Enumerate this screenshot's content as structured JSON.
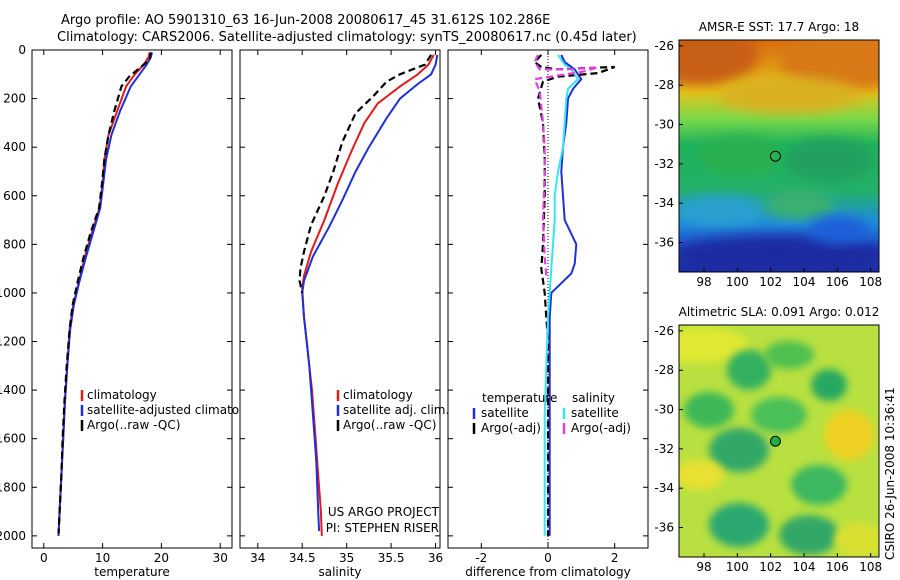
{
  "header": {
    "line1": "Argo profile: AO 5901310_63 16-Jun-2008 20080617_45 31.612S 102.286E",
    "line2": "Climatology: CARS2006. Satellite-adjusted climatology: synTS_20080617.nc (0.45d later)"
  },
  "side_caption": "CSIRO 26-Jun-2008 10:36:41",
  "colors": {
    "red": "#e31a1c",
    "blue": "#1f2fd6",
    "black": "#000000",
    "cyan": "#33e6f0",
    "magenta": "#e040e0"
  },
  "chart_data": [
    {
      "type": "line",
      "xlabel": "temperature",
      "xlim": [
        -2,
        32
      ],
      "ylim": [
        0,
        2050
      ],
      "y_reversed": true,
      "xticks": [
        0,
        10,
        20,
        30
      ],
      "yticks": [
        0,
        200,
        400,
        600,
        800,
        1000,
        1200,
        1400,
        1600,
        1800,
        2000
      ],
      "legend": [
        "climatology",
        "satellite-adjusted climatology",
        "Argo(..raw -QC)"
      ],
      "series": [
        {
          "name": "climatology",
          "color": "red",
          "dash": false,
          "points": [
            [
              18.0,
              10
            ],
            [
              17.8,
              30
            ],
            [
              17.0,
              60
            ],
            [
              15.5,
              100
            ],
            [
              14.0,
              150
            ],
            [
              12.5,
              250
            ],
            [
              11.0,
              350
            ],
            [
              10.3,
              450
            ],
            [
              10.0,
              550
            ],
            [
              9.5,
              650
            ],
            [
              8.2,
              750
            ],
            [
              7.0,
              850
            ],
            [
              6.0,
              950
            ],
            [
              5.0,
              1050
            ],
            [
              4.4,
              1150
            ],
            [
              4.0,
              1300
            ],
            [
              3.6,
              1450
            ],
            [
              3.3,
              1600
            ],
            [
              3.0,
              1750
            ],
            [
              2.7,
              1900
            ],
            [
              2.5,
              2000
            ]
          ]
        },
        {
          "name": "satellite-adjusted climatology",
          "color": "blue",
          "dash": false,
          "points": [
            [
              18.4,
              10
            ],
            [
              18.2,
              30
            ],
            [
              17.5,
              60
            ],
            [
              16.3,
              100
            ],
            [
              14.8,
              150
            ],
            [
              13.0,
              250
            ],
            [
              11.5,
              350
            ],
            [
              10.6,
              450
            ],
            [
              10.1,
              550
            ],
            [
              9.6,
              650
            ],
            [
              8.4,
              750
            ],
            [
              7.2,
              850
            ],
            [
              6.1,
              950
            ],
            [
              5.1,
              1050
            ],
            [
              4.5,
              1150
            ],
            [
              4.0,
              1300
            ],
            [
              3.6,
              1450
            ],
            [
              3.3,
              1600
            ],
            [
              3.0,
              1750
            ],
            [
              2.7,
              1900
            ],
            [
              2.5,
              2000
            ]
          ]
        },
        {
          "name": "Argo(..raw -QC)",
          "color": "black",
          "dash": true,
          "points": [
            [
              18.2,
              10
            ],
            [
              18.0,
              40
            ],
            [
              16.5,
              70
            ],
            [
              14.5,
              110
            ],
            [
              13.2,
              150
            ],
            [
              12.0,
              250
            ],
            [
              11.0,
              350
            ],
            [
              10.3,
              450
            ],
            [
              9.9,
              550
            ],
            [
              9.4,
              650
            ],
            [
              8.0,
              750
            ],
            [
              6.8,
              850
            ],
            [
              5.8,
              950
            ],
            [
              4.9,
              1050
            ],
            [
              4.4,
              1150
            ],
            [
              3.9,
              1300
            ],
            [
              3.5,
              1450
            ],
            [
              3.2,
              1600
            ],
            [
              3.0,
              1750
            ],
            [
              2.7,
              1900
            ],
            [
              2.5,
              1990
            ]
          ]
        }
      ]
    },
    {
      "type": "line",
      "xlabel": "salinity",
      "xlim": [
        33.8,
        36.05
      ],
      "ylim": [
        0,
        2050
      ],
      "y_reversed": true,
      "xticks": [
        34,
        34.5,
        35,
        35.5,
        36
      ],
      "legend": [
        "climatology",
        "satellite adj. clim.",
        "Argo(..raw -QC)"
      ],
      "annotations": [
        "US ARGO PROJECT",
        "PI: STEPHEN RISER"
      ],
      "series": [
        {
          "name": "climatology",
          "color": "red",
          "dash": false,
          "points": [
            [
              35.98,
              20
            ],
            [
              35.92,
              60
            ],
            [
              35.8,
              100
            ],
            [
              35.6,
              150
            ],
            [
              35.35,
              220
            ],
            [
              35.2,
              300
            ],
            [
              35.05,
              420
            ],
            [
              34.9,
              550
            ],
            [
              34.75,
              700
            ],
            [
              34.6,
              830
            ],
            [
              34.52,
              930
            ],
            [
              34.5,
              980
            ],
            [
              34.52,
              1100
            ],
            [
              34.55,
              1200
            ],
            [
              34.58,
              1300
            ],
            [
              34.61,
              1400
            ],
            [
              34.63,
              1500
            ],
            [
              34.65,
              1600
            ],
            [
              34.67,
              1700
            ],
            [
              34.69,
              1800
            ],
            [
              34.71,
              1900
            ],
            [
              34.72,
              2000
            ]
          ]
        },
        {
          "name": "satellite adj. clim.",
          "color": "blue",
          "dash": false,
          "points": [
            [
              36.02,
              20
            ],
            [
              36.0,
              60
            ],
            [
              35.95,
              100
            ],
            [
              35.8,
              140
            ],
            [
              35.6,
              200
            ],
            [
              35.45,
              280
            ],
            [
              35.25,
              400
            ],
            [
              35.1,
              500
            ],
            [
              34.95,
              620
            ],
            [
              34.8,
              730
            ],
            [
              34.62,
              850
            ],
            [
              34.52,
              950
            ],
            [
              34.5,
              1000
            ],
            [
              34.52,
              1100
            ],
            [
              34.55,
              1200
            ],
            [
              34.58,
              1300
            ],
            [
              34.6,
              1400
            ],
            [
              34.62,
              1500
            ],
            [
              34.64,
              1600
            ],
            [
              34.66,
              1700
            ],
            [
              34.67,
              1800
            ],
            [
              34.68,
              1900
            ],
            [
              34.69,
              1980
            ]
          ]
        },
        {
          "name": "Argo(..raw -QC)",
          "color": "black",
          "dash": true,
          "points": [
            [
              35.95,
              20
            ],
            [
              35.88,
              60
            ],
            [
              35.6,
              100
            ],
            [
              35.45,
              130
            ],
            [
              35.3,
              190
            ],
            [
              35.1,
              260
            ],
            [
              34.95,
              380
            ],
            [
              34.85,
              500
            ],
            [
              34.75,
              600
            ],
            [
              34.6,
              720
            ],
            [
              34.52,
              830
            ],
            [
              34.48,
              900
            ],
            [
              34.47,
              950
            ],
            [
              34.5,
              1000
            ]
          ]
        }
      ]
    },
    {
      "type": "line",
      "xlabel": "difference from climatology",
      "xlim": [
        -3,
        3
      ],
      "ylim": [
        0,
        2050
      ],
      "y_reversed": true,
      "xticks": [
        -2,
        0,
        2
      ],
      "legend_groups": [
        {
          "heading": "temperature",
          "items": [
            "satellite",
            "Argo(-adj)"
          ]
        },
        {
          "heading": "salinity",
          "items": [
            "satellite",
            "Argo(-adj)"
          ]
        }
      ],
      "series": [
        {
          "name": "temperature satellite",
          "color": "blue",
          "dash": false,
          "points": [
            [
              0.4,
              20
            ],
            [
              0.5,
              50
            ],
            [
              0.8,
              80
            ],
            [
              1.0,
              120
            ],
            [
              0.75,
              160
            ],
            [
              0.6,
              200
            ],
            [
              0.55,
              300
            ],
            [
              0.45,
              400
            ],
            [
              0.4,
              500
            ],
            [
              0.45,
              600
            ],
            [
              0.5,
              700
            ],
            [
              0.85,
              800
            ],
            [
              0.8,
              880
            ],
            [
              0.7,
              920
            ],
            [
              0.4,
              960
            ],
            [
              0.1,
              1000
            ],
            [
              0.05,
              1100
            ],
            [
              0.05,
              1500
            ],
            [
              0.05,
              2000
            ]
          ]
        },
        {
          "name": "temperature Argo(-adj)",
          "color": "black",
          "dash": true,
          "points": [
            [
              -0.2,
              20
            ],
            [
              -0.4,
              50
            ],
            [
              -0.2,
              70
            ],
            [
              0.3,
              80
            ],
            [
              1.0,
              75
            ],
            [
              2.0,
              70
            ],
            [
              1.5,
              95
            ],
            [
              0.3,
              110
            ],
            [
              -0.15,
              130
            ],
            [
              -0.3,
              200
            ],
            [
              -0.15,
              300
            ],
            [
              -0.1,
              450
            ],
            [
              -0.1,
              600
            ],
            [
              -0.15,
              800
            ],
            [
              -0.2,
              900
            ],
            [
              -0.1,
              1000
            ],
            [
              -0.05,
              1100
            ],
            [
              0,
              1200
            ],
            [
              0,
              2000
            ]
          ]
        },
        {
          "name": "salinity satellite",
          "color": "cyan",
          "dash": false,
          "points": [
            [
              0.3,
              20
            ],
            [
              0.5,
              60
            ],
            [
              0.7,
              80
            ],
            [
              0.9,
              120
            ],
            [
              0.6,
              160
            ],
            [
              0.55,
              200
            ],
            [
              0.5,
              300
            ],
            [
              0.45,
              400
            ],
            [
              0.3,
              500
            ],
            [
              0.2,
              600
            ],
            [
              0.2,
              700
            ],
            [
              0.15,
              800
            ],
            [
              0.1,
              900
            ],
            [
              0.05,
              1000
            ],
            [
              0,
              1100
            ],
            [
              -0.05,
              1300
            ],
            [
              -0.1,
              1500
            ],
            [
              -0.1,
              1700
            ],
            [
              -0.1,
              2000
            ]
          ]
        },
        {
          "name": "salinity Argo(-adj)",
          "color": "magenta",
          "dash": true,
          "points": [
            [
              -0.3,
              20
            ],
            [
              -0.4,
              50
            ],
            [
              -0.25,
              80
            ],
            [
              0.5,
              80
            ],
            [
              1.5,
              72
            ],
            [
              1.0,
              90
            ],
            [
              0.3,
              105
            ],
            [
              -0.4,
              120
            ],
            [
              -0.25,
              170
            ],
            [
              -0.15,
              300
            ],
            [
              -0.1,
              400
            ],
            [
              -0.1,
              500
            ],
            [
              -0.15,
              700
            ],
            [
              -0.1,
              850
            ],
            [
              -0.05,
              930
            ]
          ]
        }
      ]
    },
    {
      "type": "heatmap",
      "title": "AMSR-E SST: 17.7 Argo: 18",
      "xlim": [
        96.5,
        108.5
      ],
      "ylim": [
        -37.5,
        -25.7
      ],
      "xticks": [
        98,
        100,
        102,
        104,
        106,
        108
      ],
      "yticks": [
        -26,
        -28,
        -30,
        -32,
        -34,
        -36
      ],
      "marker": {
        "lon": 102.286,
        "lat": -31.612,
        "style": "open circle"
      }
    },
    {
      "type": "heatmap",
      "title": "Altimetric SLA: 0.091 Argo: 0.012",
      "xlim": [
        96.5,
        108.5
      ],
      "ylim": [
        -37.5,
        -25.7
      ],
      "xticks": [
        98,
        100,
        102,
        104,
        106,
        108
      ],
      "yticks": [
        -26,
        -28,
        -30,
        -32,
        -34,
        -36
      ],
      "marker": {
        "lon": 102.286,
        "lat": -31.612,
        "style": "filled green circle"
      }
    }
  ]
}
